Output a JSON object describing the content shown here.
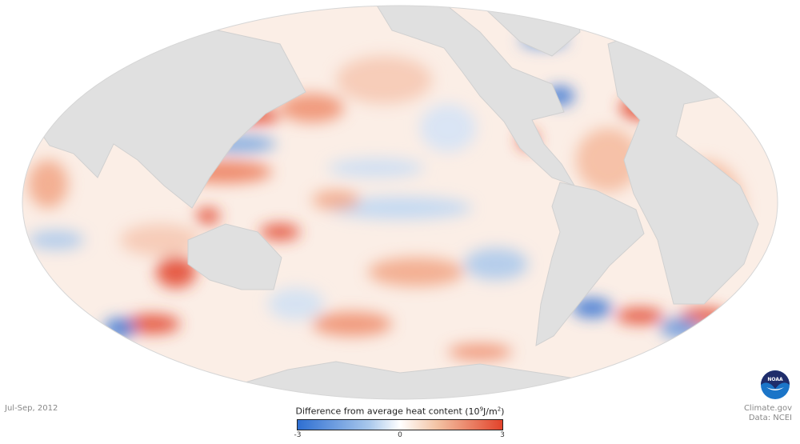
{
  "map": {
    "projection": "mollweide",
    "land_color": "#e0e0e0",
    "period": "Jul-Sep, 2012"
  },
  "legend": {
    "title": "Difference from average heat content",
    "unit_prefix": "(10",
    "unit_exp": "9",
    "unit_mid": "J/m",
    "unit_exp2": "2",
    "unit_suffix": ")",
    "min_label": "-3",
    "mid_label": "0",
    "max_label": "3",
    "colors": {
      "min": "#2e6fd2",
      "mid": "#ffffff",
      "max": "#e2432b"
    }
  },
  "credits": {
    "source": "Climate.gov",
    "data": "Data: NCEI",
    "logo_text": "NOAA"
  }
}
